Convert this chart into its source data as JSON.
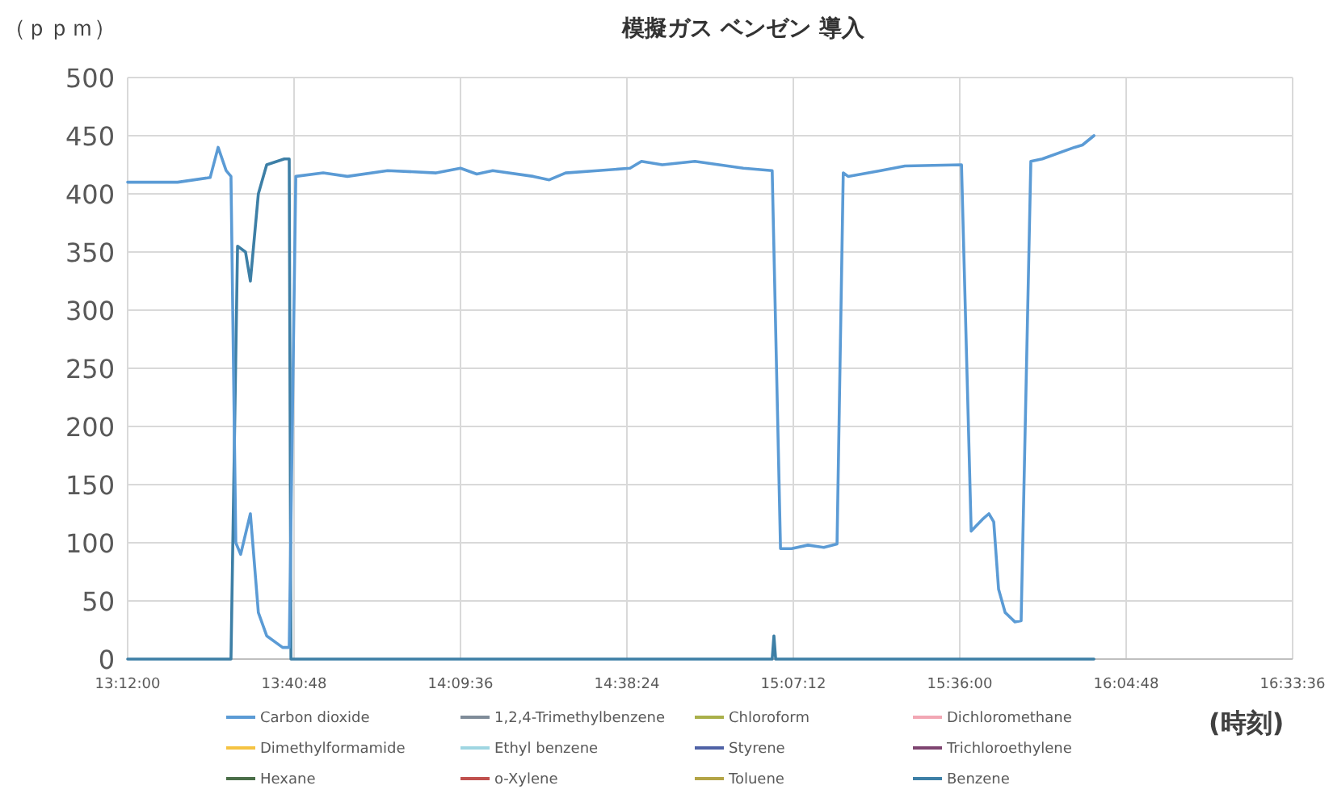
{
  "chart_data": {
    "type": "line",
    "title": "模擬ガス ベンゼン 導入",
    "ylabel": "（ｐｐｍ）",
    "xlabel": "(時刻)",
    "xlim": [
      13.2,
      16.56
    ],
    "xticks": [
      {
        "value": 13.2,
        "label": "13:12:00"
      },
      {
        "value": 13.68,
        "label": "13:40:48"
      },
      {
        "value": 14.16,
        "label": "14:09:36"
      },
      {
        "value": 14.64,
        "label": "14:38:24"
      },
      {
        "value": 15.12,
        "label": "15:07:12"
      },
      {
        "value": 15.6,
        "label": "15:36:00"
      },
      {
        "value": 16.08,
        "label": "16:04:48"
      },
      {
        "value": 16.56,
        "label": "16:33:36"
      }
    ],
    "ylim": [
      0,
      500
    ],
    "yticks": [
      0,
      50,
      100,
      150,
      200,
      250,
      300,
      350,
      400,
      450,
      500
    ],
    "grid": true,
    "legend": "bottom",
    "marker": "none",
    "line_style": "solid",
    "series": [
      {
        "name": "Carbon dioxide",
        "color": "#5b9bd5",
        "x": [
          13.2,
          13.344,
          13.438,
          13.461,
          13.484,
          13.498,
          13.512,
          13.526,
          13.554,
          13.577,
          13.601,
          13.647,
          13.666,
          13.685,
          13.764,
          13.834,
          13.95,
          14.09,
          14.16,
          14.207,
          14.253,
          14.37,
          14.416,
          14.463,
          14.556,
          14.649,
          14.682,
          14.742,
          14.836,
          14.906,
          14.976,
          15.059,
          15.083,
          15.115,
          15.162,
          15.208,
          15.246,
          15.264,
          15.278,
          15.372,
          15.442,
          15.605,
          15.633,
          15.665,
          15.684,
          15.698,
          15.712,
          15.731,
          15.759,
          15.777,
          15.805,
          15.838,
          15.931,
          15.954,
          15.987
        ],
        "values": [
          410,
          410,
          414,
          440,
          420,
          415,
          100,
          90,
          125,
          40,
          20,
          10,
          10,
          415,
          418,
          415,
          420,
          418,
          422,
          417,
          420,
          415,
          412,
          418,
          420,
          422,
          428,
          425,
          428,
          425,
          422,
          420,
          95,
          95,
          98,
          96,
          99,
          418,
          415,
          420,
          424,
          425,
          110,
          120,
          125,
          118,
          60,
          40,
          32,
          33,
          428,
          430,
          440,
          442,
          450
        ]
      },
      {
        "name": "1,2,4-Trimethylbenzene",
        "color": "#7f8c99",
        "values": [
          null
        ]
      },
      {
        "name": "Chloroform",
        "color": "#a9b04a",
        "values": [
          null
        ]
      },
      {
        "name": "Dichloromethane",
        "color": "#f2a7b4",
        "values": [
          null
        ]
      },
      {
        "name": "Dimethylformamide",
        "color": "#f5c342",
        "values": [
          null
        ]
      },
      {
        "name": "Ethyl benzene",
        "color": "#9fd6e2",
        "values": [
          null
        ]
      },
      {
        "name": "Styrene",
        "color": "#4f62a6",
        "values": [
          null
        ]
      },
      {
        "name": "Trichloroethylene",
        "color": "#7e4470",
        "values": [
          null
        ]
      },
      {
        "name": "Hexane",
        "color": "#4a6e48",
        "values": [
          null
        ]
      },
      {
        "name": "o-Xylene",
        "color": "#c0504d",
        "values": [
          null
        ]
      },
      {
        "name": "Toluene",
        "color": "#b3a446",
        "values": [
          null
        ]
      },
      {
        "name": "Benzene",
        "color": "#3d7fa6",
        "x": [
          13.2,
          13.498,
          13.517,
          13.54,
          13.554,
          13.577,
          13.601,
          13.652,
          13.666,
          13.671,
          15.059,
          15.064,
          15.069,
          15.987
        ],
        "values": [
          0,
          0,
          355,
          350,
          325,
          400,
          425,
          430,
          430,
          0,
          0,
          20,
          0,
          0
        ]
      }
    ]
  }
}
